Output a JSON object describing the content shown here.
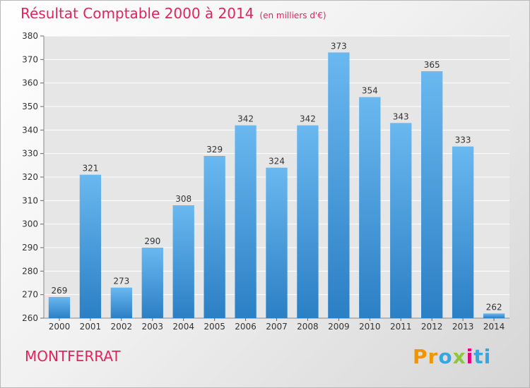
{
  "title": "Résultat Comptable 2000 à 2014",
  "subtitle": "(en milliers d'€)",
  "commune": "MONTFERRAT",
  "logo": {
    "letters": [
      "P",
      "r",
      "o",
      "x",
      "i",
      "t",
      "i"
    ]
  },
  "colors": {
    "bar_light": "#6ab8f0",
    "bar_dark": "#2b7fc4",
    "title": "#e0245e",
    "logo": [
      "#f29400",
      "#f29400",
      "#34a7e0",
      "#8dc63f",
      "#e6007e",
      "#34a7e0",
      "#34a7e0"
    ]
  },
  "chart_data": {
    "type": "bar",
    "title": "Résultat Comptable 2000 à 2014",
    "xlabel": "",
    "ylabel": "",
    "categories": [
      "2000",
      "2001",
      "2002",
      "2003",
      "2004",
      "2005",
      "2006",
      "2007",
      "2008",
      "2009",
      "2010",
      "2011",
      "2012",
      "2013",
      "2014"
    ],
    "values": [
      269,
      321,
      273,
      290,
      308,
      329,
      342,
      324,
      342,
      373,
      354,
      343,
      365,
      333,
      262
    ],
    "ylim": [
      260,
      380
    ],
    "yticks": [
      260,
      270,
      280,
      290,
      300,
      310,
      320,
      330,
      340,
      350,
      360,
      370,
      380
    ],
    "grid": true,
    "legend": "none"
  }
}
